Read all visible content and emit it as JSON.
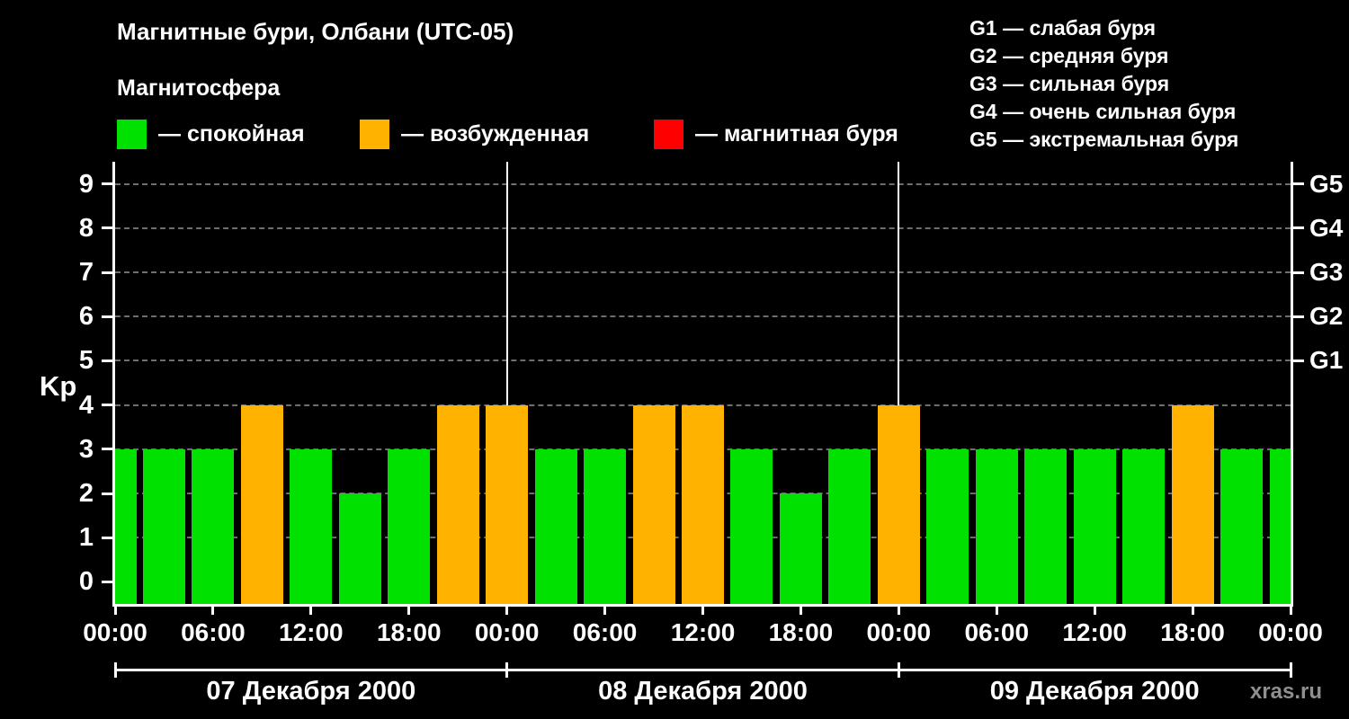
{
  "title": "Магнитные бури, Олбани (UTC-05)",
  "legend": {
    "heading": "Магнитосфера",
    "items": [
      {
        "label": "— спокойная",
        "color": "#00e100"
      },
      {
        "label": "— возбужденная",
        "color": "#ffb200"
      },
      {
        "label": "— магнитная буря",
        "color": "#ff0000"
      }
    ]
  },
  "storm_scale": [
    "G1 — слабая буря",
    "G2 — средняя буря",
    "G3 — сильная буря",
    "G4 — очень сильная буря",
    "G5 — экстремальная буря"
  ],
  "watermark": "xras.ru",
  "chart_data": {
    "type": "bar",
    "title": "Магнитные бури, Олбани (UTC-05)",
    "xlabel": "",
    "ylabel": "Kp",
    "ylim": [
      -0.5,
      9.5
    ],
    "xlim_hours": [
      0,
      72
    ],
    "bar_width_hours": 3,
    "grid": true,
    "yticks": [
      0,
      1,
      2,
      3,
      4,
      5,
      6,
      7,
      8,
      9
    ],
    "right_axis": [
      {
        "kp": 5,
        "label": "G1"
      },
      {
        "kp": 6,
        "label": "G2"
      },
      {
        "kp": 7,
        "label": "G3"
      },
      {
        "kp": 8,
        "label": "G4"
      },
      {
        "kp": 9,
        "label": "G5"
      }
    ],
    "xticks": [
      {
        "hour": 0,
        "label": "00:00"
      },
      {
        "hour": 6,
        "label": "06:00"
      },
      {
        "hour": 12,
        "label": "12:00"
      },
      {
        "hour": 18,
        "label": "18:00"
      },
      {
        "hour": 24,
        "label": "00:00"
      },
      {
        "hour": 30,
        "label": "06:00"
      },
      {
        "hour": 36,
        "label": "12:00"
      },
      {
        "hour": 42,
        "label": "18:00"
      },
      {
        "hour": 48,
        "label": "00:00"
      },
      {
        "hour": 54,
        "label": "06:00"
      },
      {
        "hour": 60,
        "label": "12:00"
      },
      {
        "hour": 66,
        "label": "18:00"
      },
      {
        "hour": 72,
        "label": "00:00"
      }
    ],
    "day_boundaries_hours": [
      24,
      48
    ],
    "days": [
      {
        "label": "07 Декабря 2000",
        "start_hour": 0,
        "end_hour": 24
      },
      {
        "label": "08 Декабря 2000",
        "start_hour": 24,
        "end_hour": 48
      },
      {
        "label": "09 Декабря 2000",
        "start_hour": 48,
        "end_hour": 72
      }
    ],
    "colors": {
      "quiet": "#00e100",
      "active": "#ffb200",
      "storm": "#ff0000",
      "grid": "#6e6e6e",
      "axis": "#ffffff"
    },
    "kp_color_rule": {
      "active_min": 4,
      "storm_min": 5
    },
    "bars": [
      {
        "hour": 0,
        "kp": 3
      },
      {
        "hour": 3,
        "kp": 3
      },
      {
        "hour": 6,
        "kp": 3
      },
      {
        "hour": 9,
        "kp": 4
      },
      {
        "hour": 12,
        "kp": 3
      },
      {
        "hour": 15,
        "kp": 2
      },
      {
        "hour": 18,
        "kp": 3
      },
      {
        "hour": 21,
        "kp": 4
      },
      {
        "hour": 24,
        "kp": 4
      },
      {
        "hour": 27,
        "kp": 3
      },
      {
        "hour": 30,
        "kp": 3
      },
      {
        "hour": 33,
        "kp": 4
      },
      {
        "hour": 36,
        "kp": 4
      },
      {
        "hour": 39,
        "kp": 3
      },
      {
        "hour": 42,
        "kp": 2
      },
      {
        "hour": 45,
        "kp": 3
      },
      {
        "hour": 48,
        "kp": 4
      },
      {
        "hour": 51,
        "kp": 3
      },
      {
        "hour": 54,
        "kp": 3
      },
      {
        "hour": 57,
        "kp": 3
      },
      {
        "hour": 60,
        "kp": 3
      },
      {
        "hour": 63,
        "kp": 3
      },
      {
        "hour": 66,
        "kp": 4
      },
      {
        "hour": 69,
        "kp": 3
      },
      {
        "hour": 72,
        "kp": 3
      }
    ]
  }
}
